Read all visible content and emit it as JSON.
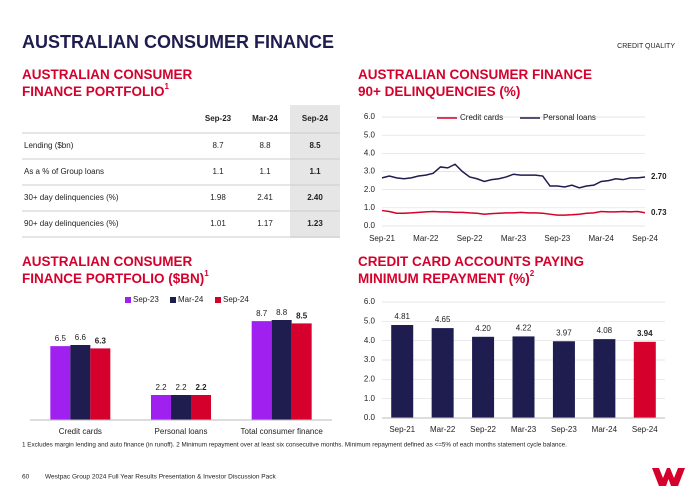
{
  "header": {
    "title": "AUSTRALIAN CONSUMER FINANCE",
    "tag": "CREDIT QUALITY"
  },
  "table": {
    "title": [
      "AUSTRALIAN CONSUMER",
      "FINANCE PORTFOLIO"
    ],
    "title_note": "1",
    "columns": [
      "Sep-23",
      "Mar-24",
      "Sep-24"
    ],
    "rows": [
      [
        "Lending ($bn)",
        "8.7",
        "8.8",
        "8.5"
      ],
      [
        "As a % of Group loans",
        "1.1",
        "1.1",
        "1.1"
      ],
      [
        "30+ day delinquencies (%)",
        "1.98",
        "2.41",
        "2.40"
      ],
      [
        "90+ day delinquencies (%)",
        "1.01",
        "1.17",
        "1.23"
      ]
    ]
  },
  "chart_data": [
    {
      "type": "line",
      "title": [
        "AUSTRALIAN CONSUMER FINANCE",
        "90+ DELINQUENCIES (%)"
      ],
      "categories": [
        "Sep-21",
        null,
        null,
        null,
        null,
        null,
        "Mar-22",
        null,
        null,
        null,
        null,
        null,
        "Sep-22",
        null,
        null,
        null,
        null,
        null,
        "Mar-23",
        null,
        null,
        null,
        null,
        null,
        "Sep-23",
        null,
        null,
        null,
        null,
        null,
        "Mar-24",
        null,
        null,
        null,
        null,
        null,
        "Sep-24"
      ],
      "series": [
        {
          "name": "Credit cards",
          "color": "#d5002b",
          "values": [
            0.85,
            0.8,
            0.7,
            0.7,
            0.72,
            0.75,
            0.78,
            0.8,
            0.78,
            0.78,
            0.75,
            0.75,
            0.72,
            0.7,
            0.65,
            0.68,
            0.7,
            0.72,
            0.72,
            0.75,
            0.72,
            0.72,
            0.7,
            0.65,
            0.6,
            0.6,
            0.62,
            0.65,
            0.7,
            0.72,
            0.8,
            0.78,
            0.78,
            0.8,
            0.78,
            0.8,
            0.73
          ],
          "value_labels": [
            null,
            null,
            null,
            null,
            null,
            null,
            null,
            null,
            null,
            null,
            null,
            null,
            null,
            null,
            null,
            null,
            null,
            null,
            null,
            null,
            null,
            null,
            null,
            null,
            null,
            null,
            null,
            null,
            null,
            null,
            null,
            null,
            null,
            null,
            null,
            null,
            "0.73"
          ]
        },
        {
          "name": "Personal loans",
          "color": "#1f1c4f",
          "values": [
            2.65,
            2.75,
            2.65,
            2.6,
            2.65,
            2.75,
            2.8,
            2.9,
            3.25,
            3.2,
            3.4,
            3.0,
            2.7,
            2.6,
            2.45,
            2.55,
            2.6,
            2.7,
            2.85,
            2.8,
            2.8,
            2.8,
            2.75,
            2.2,
            2.2,
            2.15,
            2.25,
            2.1,
            2.2,
            2.25,
            2.45,
            2.5,
            2.6,
            2.55,
            2.65,
            2.65,
            2.7
          ],
          "value_labels": [
            null,
            null,
            null,
            null,
            null,
            null,
            null,
            null,
            null,
            null,
            null,
            null,
            null,
            null,
            null,
            null,
            null,
            null,
            null,
            null,
            null,
            null,
            null,
            null,
            null,
            null,
            null,
            null,
            null,
            null,
            null,
            null,
            null,
            null,
            null,
            null,
            "2.70"
          ]
        }
      ],
      "ylim": [
        0,
        6
      ],
      "yticks": [
        {
          "value": 0,
          "label": "0.0"
        },
        {
          "value": 1,
          "label": "1.0"
        },
        {
          "value": 2,
          "label": "2.0"
        },
        {
          "value": 3,
          "label": "3.0"
        },
        {
          "value": 4,
          "label": "4.0"
        },
        {
          "value": 5,
          "label": "5.0"
        },
        {
          "value": 6,
          "label": "6.0"
        }
      ],
      "grid": true,
      "legend": "top"
    },
    {
      "type": "bar",
      "title": [
        "AUSTRALIAN CONSUMER",
        "FINANCE PORTFOLIO ($BN)"
      ],
      "title_note": "1",
      "categories": [
        "Credit cards",
        "Personal loans",
        "Total consumer finance"
      ],
      "series": [
        {
          "name": "Sep-23",
          "color": "#a020f0",
          "values": [
            6.5,
            2.2,
            8.7
          ]
        },
        {
          "name": "Mar-24",
          "color": "#1f1c4f",
          "values": [
            6.6,
            2.2,
            8.8
          ]
        },
        {
          "name": "Sep-24",
          "color": "#d5002b",
          "values": [
            6.3,
            2.2,
            8.5
          ]
        }
      ],
      "grid": false,
      "legend": "top"
    },
    {
      "type": "bar",
      "title": [
        "CREDIT CARD ACCOUNTS PAYING",
        "MINIMUM REPAYMENT (%)"
      ],
      "title_note": "2",
      "categories": [
        "Sep-21",
        "Mar-22",
        "Sep-22",
        "Mar-23",
        "Sep-23",
        "Mar-24",
        "Sep-24"
      ],
      "values": [
        4.81,
        4.65,
        4.2,
        4.22,
        3.97,
        4.08,
        3.94
      ],
      "value_labels": [
        "4.81",
        "4.65",
        "4.20",
        "4.22",
        "3.97",
        "4.08",
        "3.94"
      ],
      "colors": [
        "#1f1c4f",
        "#1f1c4f",
        "#1f1c4f",
        "#1f1c4f",
        "#1f1c4f",
        "#1f1c4f",
        "#d5002b"
      ],
      "ylim": [
        0,
        6
      ],
      "yticks": [
        {
          "value": 0,
          "label": "0.0"
        },
        {
          "value": 1,
          "label": "1.0"
        },
        {
          "value": 2,
          "label": "2.0"
        },
        {
          "value": 3,
          "label": "3.0"
        },
        {
          "value": 4,
          "label": "4.0"
        },
        {
          "value": 5,
          "label": "5.0"
        },
        {
          "value": 6,
          "label": "6.0"
        }
      ],
      "grid": true
    }
  ],
  "footnote": "1 Excludes margin lending and auto finance (in runoff). 2 Minimum repayment over at least six consecutive months. Minimum repayment defined as <=5% of each months statement cycle balance.",
  "footer": {
    "page": "60",
    "text": "Westpac Group 2024 Full Year Results Presentation & Investor Discussion Pack"
  }
}
